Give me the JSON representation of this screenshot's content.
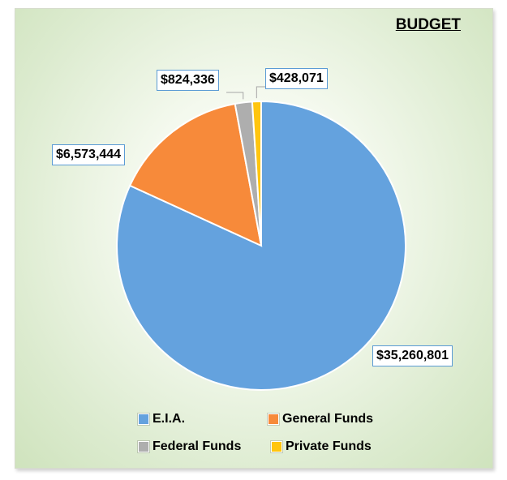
{
  "chart_data": {
    "type": "pie",
    "title": "BUDGET",
    "categories": [
      "E.I.A.",
      "General Funds",
      "Federal Funds",
      "Private Funds"
    ],
    "values": [
      35260801,
      6573444,
      824336,
      428071
    ],
    "value_labels": [
      "$35,260,801",
      "$6,573,444",
      "$824,336",
      "$428,071"
    ],
    "colors": [
      "#64a2de",
      "#f78a3a",
      "#aeaeae",
      "#ffc50f"
    ],
    "legend_position": "bottom",
    "start_angle": "12 o'clock, clockwise"
  }
}
